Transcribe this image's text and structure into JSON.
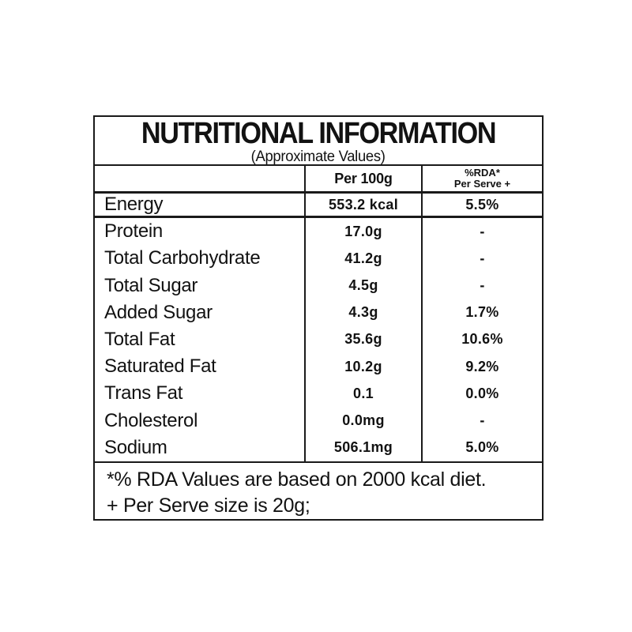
{
  "label": {
    "title": "NUTRITIONAL INFORMATION",
    "subtitle": "(Approximate Values)",
    "columns": {
      "per_100g": "Per 100g",
      "rda_line1": "%RDA*",
      "rda_line2": "Per Serve +"
    },
    "rows": [
      {
        "label": "Energy",
        "per_100g": "553.2 kcal",
        "rda": "5.5%"
      },
      {
        "label": "Protein",
        "per_100g": "17.0g",
        "rda": "-"
      },
      {
        "label": "Total Carbohydrate",
        "per_100g": "41.2g",
        "rda": "-"
      },
      {
        "label": "Total Sugar",
        "per_100g": "4.5g",
        "rda": "-"
      },
      {
        "label": "Added Sugar",
        "per_100g": "4.3g",
        "rda": "1.7%"
      },
      {
        "label": "Total Fat",
        "per_100g": "35.6g",
        "rda": "10.6%"
      },
      {
        "label": "Saturated Fat",
        "per_100g": "10.2g",
        "rda": "9.2%"
      },
      {
        "label": "Trans Fat",
        "per_100g": "0.1",
        "rda": "0.0%"
      },
      {
        "label": "Cholesterol",
        "per_100g": "0.0mg",
        "rda": "-"
      },
      {
        "label": "Sodium",
        "per_100g": "506.1mg",
        "rda": "5.0%"
      }
    ],
    "footnotes": [
      "*% RDA Values are based on 2000 kcal diet.",
      "+ Per Serve size is 20g;"
    ],
    "colors": {
      "text": "#121212",
      "border": "#1a1a1a",
      "background": "#ffffff"
    }
  }
}
